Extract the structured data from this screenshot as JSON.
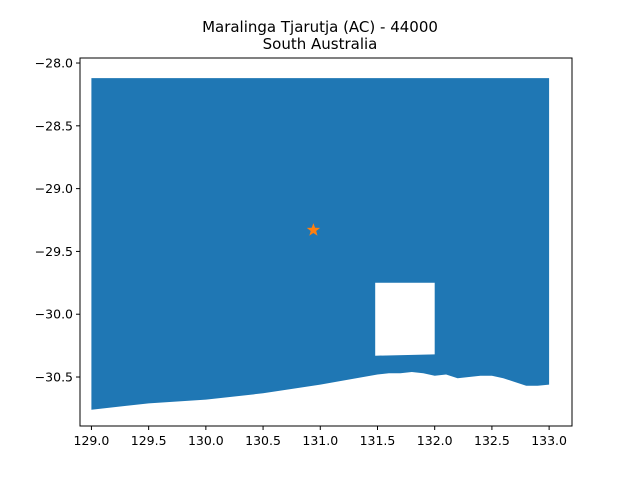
{
  "title": {
    "line1": "Maralinga Tjarutja (AC) - 44000",
    "line2": "South Australia"
  },
  "map": {
    "fill_color": "#1f77b4",
    "marker_color": "#ff7f0e",
    "marker_icon": "star-icon",
    "xlim": [
      128.9,
      133.2
    ],
    "ylim": [
      -30.89,
      -27.96
    ],
    "x_ticks": [
      129.0,
      129.5,
      130.0,
      130.5,
      131.0,
      131.5,
      132.0,
      132.5,
      133.0
    ],
    "x_tick_labels": [
      "129.0",
      "129.5",
      "130.0",
      "130.5",
      "131.0",
      "131.5",
      "132.0",
      "132.5",
      "133.0"
    ],
    "y_ticks": [
      -28.0,
      -28.5,
      -29.0,
      -29.5,
      -30.0,
      -30.5
    ],
    "y_tick_labels": [
      "−28.0",
      "−28.5",
      "−29.0",
      "−29.5",
      "−30.0",
      "−30.5"
    ],
    "marker": {
      "lon": 130.94,
      "lat": -29.33
    },
    "boundary": [
      [
        129.0,
        -28.12
      ],
      [
        133.0,
        -28.12
      ],
      [
        133.0,
        -30.56
      ],
      [
        132.9,
        -30.57
      ],
      [
        132.8,
        -30.57
      ],
      [
        132.7,
        -30.54
      ],
      [
        132.6,
        -30.51
      ],
      [
        132.5,
        -30.49
      ],
      [
        132.4,
        -30.49
      ],
      [
        132.3,
        -30.5
      ],
      [
        132.2,
        -30.51
      ],
      [
        132.1,
        -30.48
      ],
      [
        132.0,
        -30.49
      ],
      [
        131.9,
        -30.47
      ],
      [
        131.8,
        -30.46
      ],
      [
        131.7,
        -30.47
      ],
      [
        131.6,
        -30.47
      ],
      [
        131.5,
        -30.48
      ],
      [
        131.0,
        -30.56
      ],
      [
        130.5,
        -30.63
      ],
      [
        130.0,
        -30.68
      ],
      [
        129.5,
        -30.71
      ],
      [
        129.0,
        -30.76
      ]
    ],
    "hole": [
      [
        131.48,
        -29.75
      ],
      [
        132.0,
        -29.75
      ],
      [
        132.0,
        -30.32
      ],
      [
        131.48,
        -30.33
      ]
    ]
  }
}
